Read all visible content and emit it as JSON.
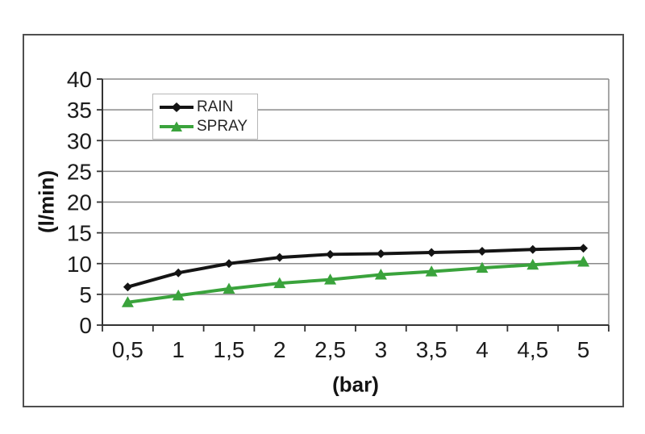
{
  "window": {
    "background": "#ffffff",
    "frame_border_color": "#4f4f4f"
  },
  "chart_data": {
    "type": "line",
    "x_categories": [
      "0,5",
      "1",
      "1,5",
      "2",
      "2,5",
      "3",
      "3,5",
      "4",
      "4,5",
      "5"
    ],
    "series": [
      {
        "name": "RAIN",
        "color": "#141414",
        "marker": "diamond",
        "values": [
          6.2,
          8.5,
          10.0,
          11.0,
          11.5,
          11.6,
          11.8,
          12.0,
          12.3,
          12.5
        ]
      },
      {
        "name": "SPRAY",
        "color": "#3aa33c",
        "marker": "triangle",
        "values": [
          3.7,
          4.8,
          5.9,
          6.8,
          7.4,
          8.2,
          8.7,
          9.3,
          9.8,
          10.3
        ]
      }
    ],
    "title": "",
    "xlabel": "(bar)",
    "ylabel": "(l/min)",
    "ylim": [
      0,
      40
    ],
    "yticks": [
      0,
      5,
      10,
      15,
      20,
      25,
      30,
      35,
      40
    ],
    "grid": true,
    "gridline_color": "#8a8a8a",
    "axis_color": "#333333",
    "tick_label_color": "#1c1c1c",
    "legend_position": "top-left-inside",
    "legend_border_color": "#b6b6b6"
  }
}
